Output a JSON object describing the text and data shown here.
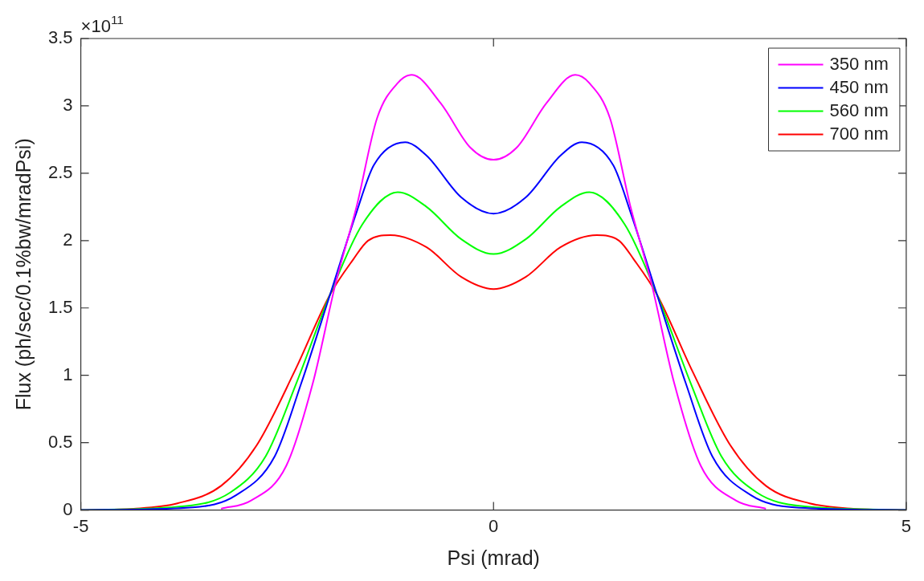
{
  "chart_data": {
    "type": "line",
    "xlabel": "Psi (mrad)",
    "ylabel": "Flux (ph/sec/0.1%bw/mradPsi)",
    "annotations": [
      "×10$^{11}$"
    ],
    "xlim": [
      -5,
      5
    ],
    "xticks": [
      -5,
      0,
      5
    ],
    "ylim": [
      0,
      3.5
    ],
    "yticks": [
      0,
      0.5,
      1,
      1.5,
      2,
      2.5,
      3,
      3.5
    ],
    "grid": false,
    "legend": "top right",
    "line_style": "solid",
    "marker": "none",
    "series": [
      {
        "name": "350 nm",
        "color": "#ff00ff",
        "x": [
          -3.3,
          -2.94,
          -2.51,
          -2.19,
          -1.91,
          -1.66,
          -1.41,
          -1.16,
          -0.99,
          -0.64,
          -0.28,
          0,
          0.28,
          0.64,
          0.99,
          1.16,
          1.41,
          1.66,
          1.91,
          2.19,
          2.51,
          2.94,
          3.3
        ],
        "values": [
          0.01,
          0.07,
          0.33,
          0.94,
          1.69,
          2.25,
          2.91,
          3.17,
          3.23,
          3.02,
          2.69,
          2.6,
          2.69,
          3.02,
          3.23,
          3.17,
          2.91,
          2.25,
          1.69,
          0.94,
          0.33,
          0.07,
          0.01
        ]
      },
      {
        "name": "450 nm",
        "color": "#0000ff",
        "x": [
          -5,
          -3.64,
          -3.12,
          -2.65,
          -2.33,
          -1.98,
          -1.66,
          -1.45,
          -1.07,
          -0.81,
          -0.39,
          0,
          0.39,
          0.81,
          1.07,
          1.45,
          1.66,
          1.98,
          2.33,
          2.65,
          3.12,
          3.64,
          5
        ],
        "values": [
          0,
          0.02,
          0.11,
          0.4,
          0.94,
          1.6,
          2.21,
          2.56,
          2.73,
          2.63,
          2.32,
          2.2,
          2.32,
          2.63,
          2.73,
          2.56,
          2.21,
          1.6,
          0.94,
          0.4,
          0.11,
          0.02,
          0
        ]
      },
      {
        "name": "560 nm",
        "color": "#00ff00",
        "x": [
          -5,
          -3.72,
          -3.19,
          -2.76,
          -2.39,
          -1.98,
          -1.59,
          -1.16,
          -0.81,
          -0.39,
          0,
          0.39,
          0.81,
          1.16,
          1.59,
          1.98,
          2.39,
          2.76,
          3.19,
          3.72,
          5
        ],
        "values": [
          0,
          0.03,
          0.13,
          0.4,
          0.94,
          1.6,
          2.12,
          2.36,
          2.25,
          2.01,
          1.9,
          2.01,
          2.25,
          2.36,
          2.12,
          1.6,
          0.94,
          0.4,
          0.13,
          0.03,
          0
        ]
      },
      {
        "name": "700 nm",
        "color": "#ff0000",
        "x": [
          -5,
          -4.36,
          -3.83,
          -3.3,
          -2.87,
          -2.41,
          -1.98,
          -1.7,
          -1.52,
          -1.25,
          -0.81,
          -0.39,
          0,
          0.39,
          0.81,
          1.25,
          1.52,
          1.7,
          1.98,
          2.41,
          2.87,
          3.3,
          3.83,
          4.36,
          5
        ],
        "values": [
          0,
          0.01,
          0.05,
          0.18,
          0.48,
          1.03,
          1.6,
          1.86,
          2,
          2.04,
          1.95,
          1.73,
          1.64,
          1.73,
          1.95,
          2.04,
          2,
          1.86,
          1.6,
          1.03,
          0.48,
          0.18,
          0.05,
          0.01,
          0
        ]
      }
    ]
  }
}
